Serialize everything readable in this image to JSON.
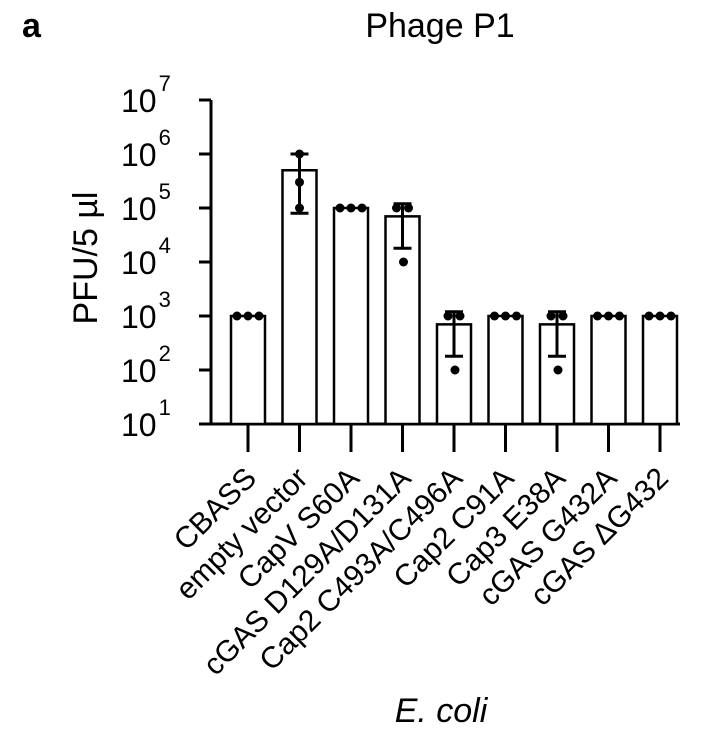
{
  "panel_label": "a",
  "chart_data": {
    "type": "bar",
    "title": "Phage P1",
    "ylabel": "PFU/5 µl",
    "xlabel": "E. coli",
    "yscale": "log",
    "ylim": [
      10,
      10000000
    ],
    "yticks": [
      {
        "base": "10",
        "exp": "1",
        "value": 10
      },
      {
        "base": "10",
        "exp": "2",
        "value": 100
      },
      {
        "base": "10",
        "exp": "3",
        "value": 1000
      },
      {
        "base": "10",
        "exp": "4",
        "value": 10000
      },
      {
        "base": "10",
        "exp": "5",
        "value": 100000
      },
      {
        "base": "10",
        "exp": "6",
        "value": 1000000
      },
      {
        "base": "10",
        "exp": "7",
        "value": 10000000
      }
    ],
    "categories": [
      "CBASS",
      "empty vector",
      "CapV S60A",
      "cGAS D129A/D131A",
      "Cap2 C493A/C496A",
      "Cap2 C91A",
      "Cap3 E38A",
      "cGAS G432A",
      "cGAS ΔG432"
    ],
    "values": [
      1000,
      500000,
      100000,
      70000,
      700,
      1000,
      700,
      1000,
      1000
    ],
    "error_low": [
      1000,
      80000,
      100000,
      18000,
      180,
      1000,
      180,
      1000,
      1000
    ],
    "error_high": [
      1000,
      1000000,
      100000,
      120000,
      1200,
      1000,
      1200,
      1000,
      1000
    ],
    "replicates": [
      [
        1000,
        1000,
        1000
      ],
      [
        1000000,
        300000,
        100000
      ],
      [
        100000,
        100000,
        100000
      ],
      [
        100000,
        100000,
        10000
      ],
      [
        1000,
        1000,
        100
      ],
      [
        1000,
        1000,
        1000
      ],
      [
        1000,
        1000,
        100
      ],
      [
        1000,
        1000,
        1000
      ],
      [
        1000,
        1000,
        1000
      ]
    ],
    "colors": {
      "bar_fill": "#ffffff",
      "stroke": "#000000",
      "point": "#000000"
    },
    "grid": false,
    "legend": "none"
  }
}
